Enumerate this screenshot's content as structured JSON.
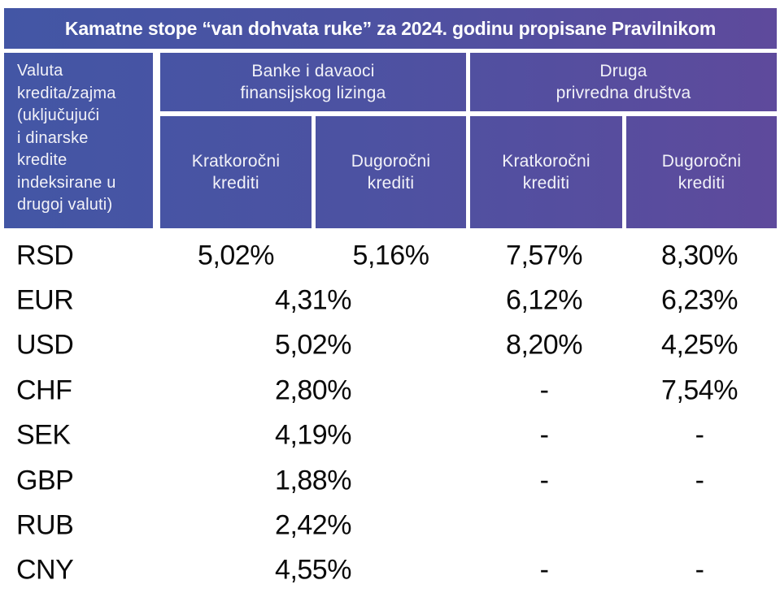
{
  "title": "Kamatne stope “van dohvata ruke” za 2024. godinu propisane Pravilnikom",
  "header": {
    "currency_column": "Valuta\nkredita/zajma\n(uključujući\ni dinarske\nkredite\nindeksirane u\ndrugoj valuti)",
    "group_banks": "Banke i davaoci\nfinansijskog lizinga",
    "group_other": "Druga\nprivredna društva",
    "sub_short": "Kratkoročni\nkrediti",
    "sub_long": "Dugoročni\nkrediti"
  },
  "colors": {
    "gradient_left": "#4356A5",
    "gradient_right": "#5E4A9C",
    "header_text": "#FFFFFF",
    "body_text": "#0A0A0A",
    "background": "#FFFFFF"
  },
  "chart_data": {
    "type": "table",
    "title": "Kamatne stope “van dohvata ruke” za 2024. godinu propisane Pravilnikom",
    "columns": [
      "Valuta kredita/zajma (uključujući i dinarske kredite indeksirane u drugoj valuti)",
      "Banke i davaoci finansijskog lizinga – Kratkoročni krediti",
      "Banke i davaoci finansijskog lizinga – Dugoročni krediti",
      "Druga privredna društva – Kratkoročni krediti",
      "Druga privredna društva – Dugoročni krediti"
    ],
    "note_on_merged": "Rows EUR–CNY show a single merged value centered across both bank columns",
    "rows": [
      {
        "currency": "RSD",
        "banke_kratkorocni": "5,02%",
        "banke_dugorocni": "5,16%",
        "druga_kratkorocni": "7,57%",
        "druga_dugorocni": "8,30%"
      },
      {
        "currency": "EUR",
        "banke": "4,31%",
        "druga_kratkorocni": "6,12%",
        "druga_dugorocni": "6,23%"
      },
      {
        "currency": "USD",
        "banke": "5,02%",
        "druga_kratkorocni": "8,20%",
        "druga_dugorocni": "4,25%"
      },
      {
        "currency": "CHF",
        "banke": "2,80%",
        "druga_kratkorocni": "-",
        "druga_dugorocni": "7,54%"
      },
      {
        "currency": "SEK",
        "banke": "4,19%",
        "druga_kratkorocni": "-",
        "druga_dugorocni": "-"
      },
      {
        "currency": "GBP",
        "banke": "1,88%",
        "druga_kratkorocni": "-",
        "druga_dugorocni": "-"
      },
      {
        "currency": "RUB",
        "banke": "2,42%",
        "druga_kratkorocni": "",
        "druga_dugorocni": ""
      },
      {
        "currency": "CNY",
        "banke": "4,55%",
        "druga_kratkorocni": "-",
        "druga_dugorocni": "-"
      }
    ]
  }
}
